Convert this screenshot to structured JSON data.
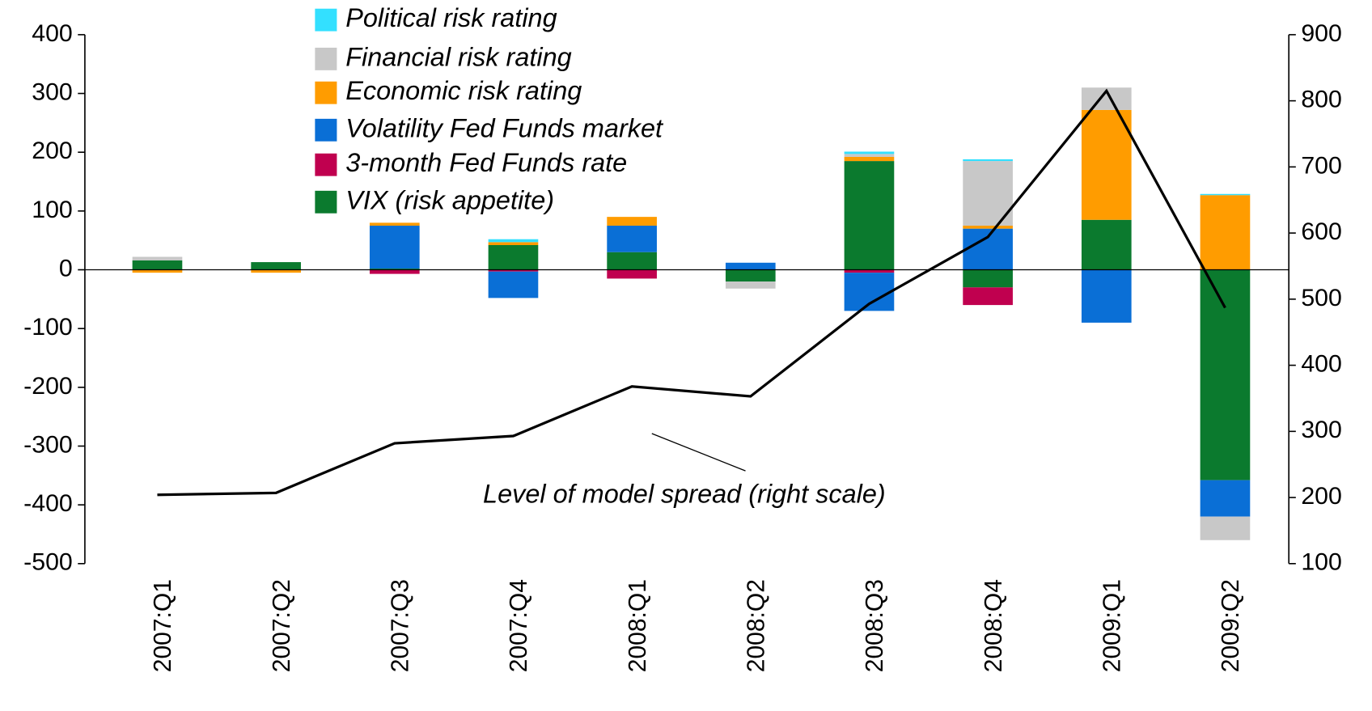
{
  "chart_data": {
    "type": "bar",
    "stacked": true,
    "categories": [
      "2007:Q1",
      "2007:Q2",
      "2007:Q3",
      "2007:Q4",
      "2008:Q1",
      "2008:Q2",
      "2008:Q3",
      "2008:Q4",
      "2009:Q1",
      "2009:Q2"
    ],
    "series": [
      {
        "name": "VIX (risk appetite)",
        "color": "#0b7a2e",
        "values": [
          16,
          13,
          2,
          42,
          30,
          -20,
          185,
          -30,
          85,
          -358
        ]
      },
      {
        "name": "3-month Fed Funds rate",
        "color": "#c0004f",
        "values": [
          0,
          0,
          -7,
          -3,
          -15,
          0,
          -5,
          -30,
          0,
          0
        ]
      },
      {
        "name": "Volatility Fed Funds market",
        "color": "#0a6fd6",
        "values": [
          0,
          0,
          73,
          -45,
          45,
          12,
          -65,
          70,
          -90,
          -62
        ]
      },
      {
        "name": "Economic risk rating",
        "color": "#ff9c00",
        "values": [
          -5,
          -5,
          5,
          5,
          15,
          0,
          7,
          5,
          187,
          127
        ]
      },
      {
        "name": "Financial risk rating",
        "color": "#c8c8c8",
        "values": [
          6,
          0,
          0,
          0,
          0,
          -12,
          5,
          110,
          38,
          -40
        ]
      },
      {
        "name": "Political risk rating",
        "color": "#33e0ff",
        "values": [
          0,
          0,
          0,
          5,
          0,
          0,
          4,
          3,
          0,
          2
        ]
      }
    ],
    "line": {
      "type": "line",
      "axis": "y2",
      "color": "#000000",
      "values": [
        204,
        207,
        282,
        293,
        368,
        353,
        493,
        594,
        815,
        487
      ]
    },
    "annotation": "Level of model spread (right scale)",
    "ylim": [
      -500,
      400
    ],
    "yticks": [
      -500,
      -400,
      -300,
      -200,
      -100,
      0,
      100,
      200,
      300,
      400
    ],
    "y2lim": [
      100,
      900
    ],
    "y2ticks": [
      100,
      200,
      300,
      400,
      500,
      600,
      700,
      800,
      900
    ],
    "legend": "top-left"
  }
}
